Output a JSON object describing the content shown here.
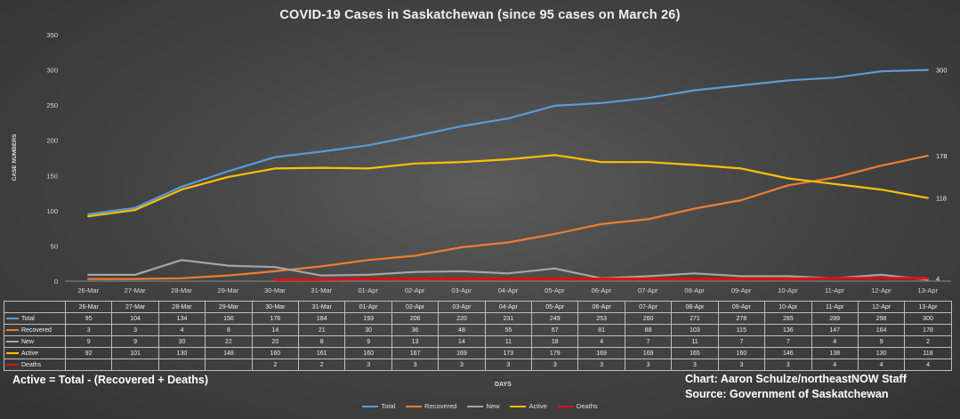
{
  "chart_data": {
    "type": "line",
    "title": "COVID-19 Cases in Saskatchewan (since 95 cases on March 26)",
    "xlabel": "DAYS",
    "ylabel": "CASE NUMBERS",
    "ylim": [
      0,
      350
    ],
    "yticks": [
      "0",
      "50",
      "100",
      "150",
      "200",
      "250",
      "300",
      "350"
    ],
    "categories": [
      "26-Mar",
      "27-Mar",
      "28-Mar",
      "29-Mar",
      "30-Mar",
      "31-Mar",
      "01-Apr",
      "02-Apr",
      "03-Apr",
      "04-Apr",
      "05-Apr",
      "06-Apr",
      "07-Apr",
      "08-Apr",
      "09-Apr",
      "10-Apr",
      "11-Apr",
      "12-Apr",
      "13-Apr"
    ],
    "grid": false,
    "legend_position": "bottom",
    "series": [
      {
        "name": "Total",
        "color": "#5b9bd5",
        "values": [
          95,
          104,
          134,
          156,
          176,
          184,
          193,
          206,
          220,
          231,
          249,
          253,
          260,
          271,
          278,
          285,
          289,
          298,
          300
        ],
        "end_label": "300"
      },
      {
        "name": "Recovered",
        "color": "#ed7d31",
        "values": [
          3,
          3,
          4,
          8,
          14,
          21,
          30,
          36,
          48,
          55,
          67,
          81,
          88,
          103,
          115,
          136,
          147,
          164,
          178
        ],
        "end_label": "178"
      },
      {
        "name": "New",
        "color": "#a5a5a5",
        "values": [
          9,
          9,
          30,
          22,
          20,
          8,
          9,
          13,
          14,
          11,
          18,
          4,
          7,
          11,
          7,
          7,
          4,
          9,
          2
        ],
        "end_label": ""
      },
      {
        "name": "Active",
        "color": "#ffc000",
        "values": [
          92,
          101,
          130,
          148,
          160,
          161,
          160,
          167,
          169,
          173,
          179,
          169,
          169,
          165,
          160,
          146,
          138,
          130,
          118
        ],
        "end_label": "118"
      },
      {
        "name": "Deaths",
        "color": "#e01010",
        "values": [
          null,
          null,
          null,
          null,
          2,
          2,
          3,
          3,
          3,
          3,
          3,
          3,
          3,
          3,
          3,
          3,
          4,
          4,
          4
        ],
        "end_label": "4"
      }
    ]
  },
  "notes": {
    "formula": "Active = Total - (Recovered + Deaths)",
    "credit": "Chart: Aaron Schulze/northeastNOW Staff",
    "source": "Source: Government of Saskatchewan"
  }
}
